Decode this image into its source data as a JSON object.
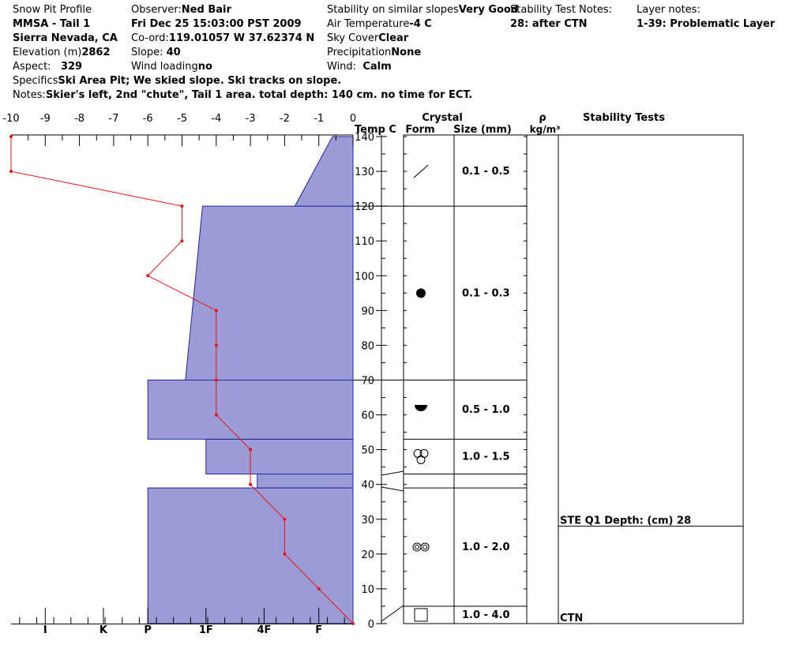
{
  "header": {
    "col1": {
      "title": "Snow Pit Profile",
      "pit_name": "MMSA - Tail 1",
      "range": "Sierra Nevada, CA",
      "elevation_label": "Elevation (m)",
      "elevation_value": "2862",
      "aspect_label": "Aspect:",
      "aspect_value": "329"
    },
    "col2": {
      "observer_label": "Observer:",
      "observer_value": "Ned Bair",
      "datetime": "Fri Dec 25 15:03:00 PST 2009",
      "coord_label": "Co-ord:",
      "coord_value": "119.01057 W 37.62374 N",
      "slope_label": "Slope:",
      "slope_value": "40",
      "wind_loading_label": "Wind loading",
      "wind_loading_value": "no"
    },
    "col3": {
      "stability_label": "Stability on similar slopes",
      "stability_value": "Very Good",
      "air_temp_label": "Air Temperature",
      "air_temp_value": "-4 C",
      "sky_label": "Sky Cover",
      "sky_value": "Clear",
      "precip_label": "Precipitation",
      "precip_value": "None",
      "wind_label": "Wind:",
      "wind_value": "Calm"
    },
    "col4": {
      "stn_label": "Stability Test Notes:",
      "stn_value": "28: after CTN"
    },
    "col5": {
      "layer_notes_label": "Layer notes:",
      "layer_notes_value": "1-39: Problematic Layer"
    },
    "specifics_label": "Specifics",
    "specifics_value": "Ski Area Pit; We skied slope. Ski tracks on slope.",
    "notes_label": "Notes:",
    "notes_value": "Skier's left, 2nd \"chute\", Tail 1 area. total depth: 140 cm. no time for ECT."
  },
  "columns": {
    "temp_label": "Temp C",
    "crystal_label": "Crystal",
    "form_label": "Form",
    "size_label": "Size (mm)",
    "rho_label": "ρ",
    "density_unit": "kg/m³",
    "stability_tests_label": "Stability Tests"
  },
  "chart_data": {
    "type": "line",
    "temp_axis": {
      "min": -10,
      "max": 0,
      "ticks": [
        "-10",
        "-9",
        "-8",
        "-7",
        "-6",
        "-5",
        "-4",
        "-3",
        "-2",
        "-1",
        "0"
      ]
    },
    "depth_axis": {
      "min": 0,
      "max": 140,
      "ticks": [
        "0",
        "10",
        "20",
        "30",
        "40",
        "50",
        "60",
        "70",
        "80",
        "90",
        "100",
        "110",
        "120",
        "130",
        "140"
      ]
    },
    "hardness_ticks": [
      "I",
      "K",
      "P",
      "1F",
      "4F",
      "F"
    ],
    "temperature_profile": [
      {
        "depth": 140,
        "temp": -10
      },
      {
        "depth": 130,
        "temp": -10
      },
      {
        "depth": 120,
        "temp": -5
      },
      {
        "depth": 110,
        "temp": -5
      },
      {
        "depth": 100,
        "temp": -6
      },
      {
        "depth": 90,
        "temp": -4
      },
      {
        "depth": 80,
        "temp": -4
      },
      {
        "depth": 70,
        "temp": -4
      },
      {
        "depth": 60,
        "temp": -4
      },
      {
        "depth": 50,
        "temp": -3
      },
      {
        "depth": 40,
        "temp": -3
      },
      {
        "depth": 30,
        "temp": -2
      },
      {
        "depth": 20,
        "temp": -2
      },
      {
        "depth": 10,
        "temp": -1
      },
      {
        "depth": 0,
        "temp": 0
      }
    ],
    "hardness_layers": [
      {
        "bottom": 0,
        "top": 39,
        "hardness_bottom": 6,
        "hardness_top": 6
      },
      {
        "bottom": 39,
        "top": 43,
        "hardness_bottom": 2.8,
        "hardness_top": 2.8
      },
      {
        "bottom": 43,
        "top": 53,
        "hardness_bottom": 4.3,
        "hardness_top": 4.3
      },
      {
        "bottom": 53,
        "top": 70,
        "hardness_bottom": 6,
        "hardness_top": 6
      },
      {
        "bottom": 70,
        "top": 120,
        "hardness_bottom": 4.9,
        "hardness_top": 4.4
      },
      {
        "bottom": 120,
        "top": 140,
        "hardness_bottom": 1.7,
        "hardness_top": 0.6
      }
    ],
    "crystal_layers": [
      {
        "bottom": 120,
        "top": 140,
        "form": "decomposing",
        "size": "0.1 -   0.5"
      },
      {
        "bottom": 70,
        "top": 120,
        "form": "round",
        "size": "0.1 -   0.3"
      },
      {
        "bottom": 53,
        "top": 70,
        "form": "rounded-facet",
        "size": "0.5 -   1.0"
      },
      {
        "bottom": 43,
        "top": 53,
        "form": "clustered",
        "size": "1.0 -   1.5"
      },
      {
        "bottom": 39,
        "top": 43,
        "form": "",
        "size": ""
      },
      {
        "bottom": 5,
        "top": 39,
        "form": "melt-forms",
        "size": "1.0 -   2.0"
      },
      {
        "bottom": 0,
        "top": 5,
        "form": "facet-square",
        "size": "1.0 -   4.0"
      }
    ],
    "stability_tests": [
      {
        "depth": 28,
        "label": "STE Q1 Depth: (cm) 28"
      },
      {
        "depth": 0,
        "label": "CTN"
      }
    ],
    "colors": {
      "layer_fill": "#9b9bd6",
      "layer_stroke": "#2222aa",
      "temp_line": "#ee1111"
    }
  }
}
